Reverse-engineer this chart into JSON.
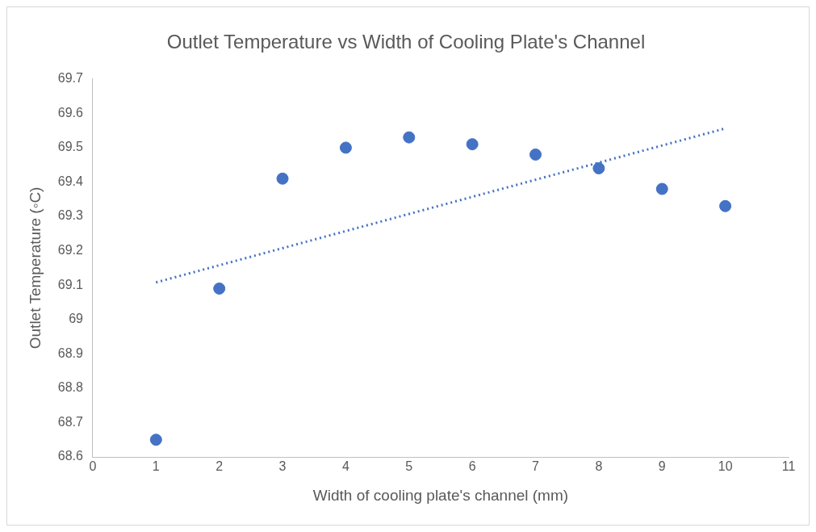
{
  "chart_data": {
    "type": "scatter",
    "title": "Outlet Temperature vs Width of Cooling Plate's Channel",
    "xlabel": "Width of cooling plate's channel (mm)",
    "ylabel": "Outlet Temperature (◦C)",
    "x": [
      1,
      2,
      3,
      4,
      5,
      6,
      7,
      8,
      9,
      10
    ],
    "series": [
      {
        "type": "scatter",
        "color": "#4472c4",
        "marker": "circle",
        "values": [
          68.65,
          69.09,
          69.41,
          69.5,
          69.53,
          69.51,
          69.48,
          69.44,
          69.38,
          69.33
        ]
      },
      {
        "type": "line",
        "color": "#4472c4",
        "marker": "none",
        "line_style": "dotted",
        "x": [
          1,
          10
        ],
        "values": [
          69.108,
          69.556
        ]
      }
    ],
    "xlim": [
      0,
      11
    ],
    "xticks": [
      0,
      1,
      2,
      3,
      4,
      5,
      6,
      7,
      8,
      9,
      10,
      11
    ],
    "ylim": [
      68.6,
      69.7
    ],
    "yticks": [
      68.6,
      68.7,
      68.8,
      68.9,
      69,
      69.1,
      69.2,
      69.3,
      69.4,
      69.5,
      69.6,
      69.7
    ],
    "grid": false,
    "legend": false
  }
}
